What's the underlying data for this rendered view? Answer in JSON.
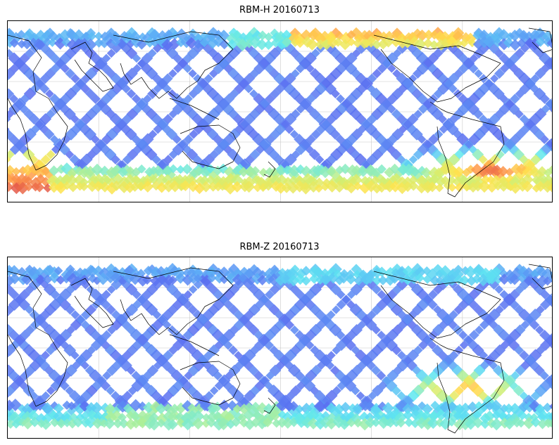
{
  "panels": [
    {
      "title": "RBM-H 20160713",
      "variable": "RBM-H",
      "date": "20160713"
    },
    {
      "title": "RBM-Z 20160713",
      "variable": "RBM-Z",
      "date": "20160713"
    }
  ],
  "map": {
    "projection": "equirectangular",
    "central_longitude": 0,
    "lon_range_deg": [
      0,
      360
    ],
    "lat_range_deg": [
      -60,
      60
    ],
    "gridlines": true,
    "colormap": "jet (semi-transparent)",
    "coastlines": true
  },
  "colors": {
    "low": "#5b6bf0",
    "mid_low": "#5aa8f6",
    "mid": "#5ee8f0",
    "mid_high": "#c8f07a",
    "high_yellow": "#ffe34d",
    "high_orange": "#ff9a4a",
    "highest": "#e0504a",
    "gridline": "#c8c8c8",
    "coastline": "#000000"
  }
}
